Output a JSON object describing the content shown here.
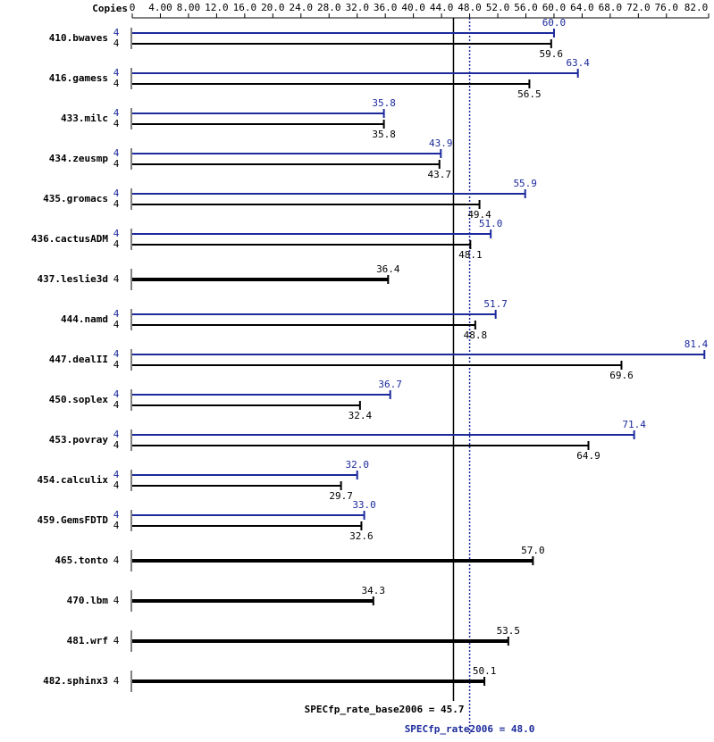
{
  "chart_data": {
    "type": "bar",
    "copies_label": "Copies",
    "categories": [
      "410.bwaves",
      "416.gamess",
      "433.milc",
      "434.zeusmp",
      "435.gromacs",
      "436.cactusADM",
      "437.leslie3d",
      "444.namd",
      "447.dealII",
      "450.soplex",
      "453.povray",
      "454.calculix",
      "459.GemsFDTD",
      "465.tonto",
      "470.lbm",
      "481.wrf",
      "482.sphinx3"
    ],
    "series": [
      {
        "color": "#1c2a9c",
        "copies": [
          4,
          4,
          4,
          4,
          4,
          4,
          null,
          4,
          4,
          4,
          4,
          4,
          4,
          null,
          null,
          null,
          null
        ],
        "values": [
          60.0,
          63.4,
          35.8,
          43.9,
          55.9,
          51.0,
          null,
          51.7,
          81.4,
          36.7,
          71.4,
          32.0,
          33.0,
          null,
          null,
          null,
          null
        ],
        "value_labels": [
          "60.0",
          "63.4",
          "35.8",
          "43.9",
          "55.9",
          "51.0",
          null,
          "51.7",
          "81.4",
          "36.7",
          "71.4",
          "32.0",
          "33.0",
          null,
          null,
          null,
          null
        ]
      },
      {
        "color": "#000000",
        "copies": [
          4,
          4,
          4,
          4,
          4,
          4,
          4,
          4,
          4,
          4,
          4,
          4,
          4,
          4,
          4,
          4,
          4
        ],
        "values": [
          59.6,
          56.5,
          35.8,
          43.7,
          49.4,
          48.1,
          36.4,
          48.8,
          69.6,
          32.4,
          64.9,
          29.7,
          32.6,
          57.0,
          34.3,
          53.5,
          50.1
        ],
        "value_labels": [
          "59.6",
          "56.5",
          "35.8",
          "43.7",
          "49.4",
          "48.1",
          "36.4",
          "48.8",
          "69.6",
          "32.4",
          "64.9",
          "29.7",
          "32.6",
          "57.0",
          "34.3",
          "53.5",
          "50.1"
        ]
      }
    ],
    "xlim": [
      0,
      82
    ],
    "xticks": [
      0,
      {
        "value": 4,
        "label": "4.00"
      },
      {
        "value": 8,
        "label": "8.00"
      },
      {
        "value": 12,
        "label": "12.0"
      },
      {
        "value": 16,
        "label": "16.0"
      },
      {
        "value": 20,
        "label": "20.0"
      },
      {
        "value": 24,
        "label": "24.0"
      },
      {
        "value": 28,
        "label": "28.0"
      },
      {
        "value": 32,
        "label": "32.0"
      },
      {
        "value": 36,
        "label": "36.0"
      },
      {
        "value": 40,
        "label": "40.0"
      },
      {
        "value": 44,
        "label": "44.0"
      },
      {
        "value": 48,
        "label": "48.0"
      },
      {
        "value": 52,
        "label": "52.0"
      },
      {
        "value": 56,
        "label": "56.0"
      },
      {
        "value": 60,
        "label": "60.0"
      },
      {
        "value": 64,
        "label": "64.0"
      },
      {
        "value": 68,
        "label": "68.0"
      },
      {
        "value": 72,
        "label": "72.0"
      },
      {
        "value": 76,
        "label": "76.0"
      },
      {
        "value": 82,
        "label": "82.0"
      }
    ],
    "reference_lines": [
      {
        "label": "SPECfp_rate_base2006 =",
        "value": 45.7,
        "color": "#000000",
        "style": "solid"
      },
      {
        "label": "SPECfp_rate2006 =",
        "value": 48,
        "value_label": "48.0",
        "color": "#1c2a9c",
        "style": "dotted"
      }
    ]
  }
}
